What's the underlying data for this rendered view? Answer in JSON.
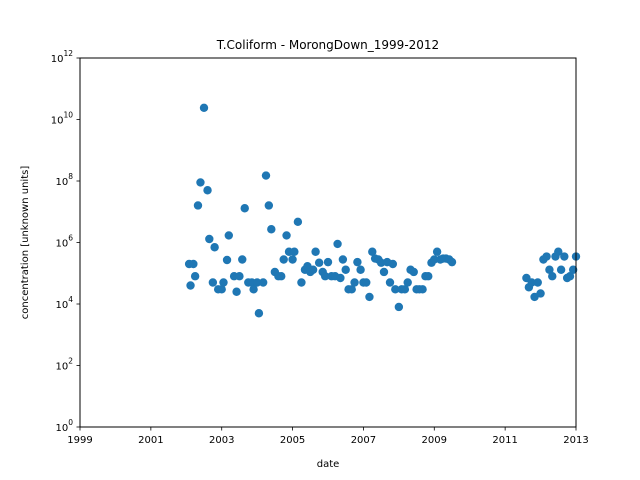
{
  "chart_data": {
    "type": "scatter",
    "title": "T.Coliform - MorongDown_1999-2012",
    "xlabel": "date",
    "ylabel": "concentration [unknown units]",
    "xscale": "linear",
    "yscale": "log",
    "xlim": [
      1999,
      2013
    ],
    "ylim_exponent": [
      0,
      12
    ],
    "x_ticks": [
      {
        "value": 1999,
        "label": "1999"
      },
      {
        "value": 2001,
        "label": "2001"
      },
      {
        "value": 2003,
        "label": "2003"
      },
      {
        "value": 2005,
        "label": "2005"
      },
      {
        "value": 2007,
        "label": "2007"
      },
      {
        "value": 2009,
        "label": "2009"
      },
      {
        "value": 2011,
        "label": "2011"
      },
      {
        "value": 2013,
        "label": "2013"
      }
    ],
    "y_ticks": [
      {
        "exponent": 0,
        "base": "10",
        "exp": "0"
      },
      {
        "exponent": 2,
        "base": "10",
        "exp": "2"
      },
      {
        "exponent": 4,
        "base": "10",
        "exp": "4"
      },
      {
        "exponent": 6,
        "base": "10",
        "exp": "6"
      },
      {
        "exponent": 8,
        "base": "10",
        "exp": "8"
      },
      {
        "exponent": 10,
        "base": "10",
        "exp": "10"
      },
      {
        "exponent": 12,
        "base": "10",
        "exp": "12"
      }
    ],
    "grid": false,
    "legend": "none",
    "marker_color": "#1f77b4",
    "series": [
      {
        "name": "T.Coliform",
        "points": [
          [
            2002.08,
            200000
          ],
          [
            2002.12,
            40000
          ],
          [
            2002.2,
            200000
          ],
          [
            2002.25,
            80000
          ],
          [
            2002.33,
            16000000
          ],
          [
            2002.4,
            90000000
          ],
          [
            2002.5,
            24000000000
          ],
          [
            2002.6,
            50000000
          ],
          [
            2002.65,
            1300000
          ],
          [
            2002.75,
            50000
          ],
          [
            2002.8,
            700000
          ],
          [
            2002.9,
            30000
          ],
          [
            2003.0,
            30000
          ],
          [
            2003.05,
            50000
          ],
          [
            2003.15,
            270000
          ],
          [
            2003.2,
            1700000
          ],
          [
            2003.35,
            80000
          ],
          [
            2003.42,
            25000
          ],
          [
            2003.5,
            80000
          ],
          [
            2003.58,
            280000
          ],
          [
            2003.65,
            13000000
          ],
          [
            2003.75,
            50000
          ],
          [
            2003.85,
            50000
          ],
          [
            2003.9,
            30000
          ],
          [
            2004.0,
            50000
          ],
          [
            2004.05,
            5000
          ],
          [
            2004.17,
            50000
          ],
          [
            2004.25,
            150000000
          ],
          [
            2004.33,
            16000000
          ],
          [
            2004.4,
            2700000
          ],
          [
            2004.5,
            110000
          ],
          [
            2004.6,
            80000
          ],
          [
            2004.68,
            80000
          ],
          [
            2004.75,
            280000
          ],
          [
            2004.83,
            1700000
          ],
          [
            2004.9,
            500000
          ],
          [
            2005.0,
            280000
          ],
          [
            2005.05,
            500000
          ],
          [
            2005.15,
            4700000
          ],
          [
            2005.25,
            50000
          ],
          [
            2005.35,
            130000
          ],
          [
            2005.42,
            170000
          ],
          [
            2005.5,
            110000
          ],
          [
            2005.58,
            130000
          ],
          [
            2005.65,
            500000
          ],
          [
            2005.75,
            220000
          ],
          [
            2005.85,
            110000
          ],
          [
            2005.92,
            80000
          ],
          [
            2006.0,
            230000
          ],
          [
            2006.1,
            80000
          ],
          [
            2006.2,
            80000
          ],
          [
            2006.27,
            900000
          ],
          [
            2006.35,
            70000
          ],
          [
            2006.42,
            280000
          ],
          [
            2006.5,
            130000
          ],
          [
            2006.58,
            30000
          ],
          [
            2006.67,
            30000
          ],
          [
            2006.75,
            50000
          ],
          [
            2006.83,
            230000
          ],
          [
            2006.92,
            130000
          ],
          [
            2007.0,
            50000
          ],
          [
            2007.08,
            50000
          ],
          [
            2007.17,
            17000
          ],
          [
            2007.25,
            500000
          ],
          [
            2007.33,
            300000
          ],
          [
            2007.42,
            280000
          ],
          [
            2007.5,
            220000
          ],
          [
            2007.58,
            110000
          ],
          [
            2007.67,
            230000
          ],
          [
            2007.75,
            50000
          ],
          [
            2007.83,
            200000
          ],
          [
            2007.9,
            30000
          ],
          [
            2008.0,
            8000
          ],
          [
            2008.08,
            30000
          ],
          [
            2008.17,
            30000
          ],
          [
            2008.25,
            50000
          ],
          [
            2008.33,
            130000
          ],
          [
            2008.42,
            110000
          ],
          [
            2008.5,
            30000
          ],
          [
            2008.58,
            30000
          ],
          [
            2008.67,
            30000
          ],
          [
            2008.75,
            80000
          ],
          [
            2008.83,
            80000
          ],
          [
            2008.92,
            220000
          ],
          [
            2009.0,
            280000
          ],
          [
            2009.08,
            500000
          ],
          [
            2009.17,
            280000
          ],
          [
            2009.25,
            300000
          ],
          [
            2009.33,
            300000
          ],
          [
            2009.42,
            280000
          ],
          [
            2009.5,
            230000
          ],
          [
            2011.6,
            70000
          ],
          [
            2011.67,
            35000
          ],
          [
            2011.75,
            50000
          ],
          [
            2011.83,
            17000
          ],
          [
            2011.92,
            50000
          ],
          [
            2012.0,
            22000
          ],
          [
            2012.08,
            280000
          ],
          [
            2012.17,
            350000
          ],
          [
            2012.25,
            130000
          ],
          [
            2012.33,
            80000
          ],
          [
            2012.42,
            350000
          ],
          [
            2012.5,
            500000
          ],
          [
            2012.58,
            130000
          ],
          [
            2012.67,
            350000
          ],
          [
            2012.75,
            70000
          ],
          [
            2012.83,
            80000
          ],
          [
            2012.92,
            130000
          ],
          [
            2013.0,
            350000
          ]
        ]
      }
    ]
  }
}
